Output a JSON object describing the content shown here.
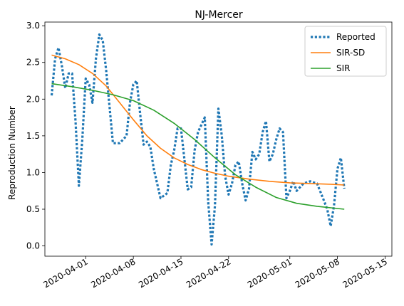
{
  "chart_data": {
    "type": "line",
    "title": "NJ-Mercer",
    "xlabel": "",
    "ylabel": "Reproduction Number",
    "xlim": [
      "2020-03-26",
      "2020-05-16"
    ],
    "ylim": [
      -0.14,
      3.05
    ],
    "x_ticks": [
      "2020-04-01",
      "2020-04-08",
      "2020-04-15",
      "2020-04-22",
      "2020-05-01",
      "2020-05-08",
      "2020-05-15"
    ],
    "y_ticks": [
      "0.0",
      "0.5",
      "1.0",
      "1.5",
      "2.0",
      "2.5",
      "3.0"
    ],
    "legend_position": "top-right",
    "series": [
      {
        "name": "Reported",
        "color": "#1f77b4",
        "style": "dotted",
        "points": [
          [
            "2020-03-27",
            2.05
          ],
          [
            "2020-03-27.5",
            2.55
          ],
          [
            "2020-03-28",
            2.7
          ],
          [
            "2020-03-28.5",
            2.45
          ],
          [
            "2020-03-29",
            2.15
          ],
          [
            "2020-03-29.5",
            2.35
          ],
          [
            "2020-03-30",
            2.35
          ],
          [
            "2020-03-30.5",
            1.7
          ],
          [
            "2020-03-31",
            0.82
          ],
          [
            "2020-03-31.5",
            1.45
          ],
          [
            "2020-04-01",
            2.28
          ],
          [
            "2020-04-01.5",
            2.2
          ],
          [
            "2020-04-02",
            1.95
          ],
          [
            "2020-04-02.5",
            2.55
          ],
          [
            "2020-04-03",
            2.88
          ],
          [
            "2020-04-03.5",
            2.8
          ],
          [
            "2020-04-04",
            2.4
          ],
          [
            "2020-04-04.5",
            1.9
          ],
          [
            "2020-04-05",
            1.4
          ],
          [
            "2020-04-06",
            1.4
          ],
          [
            "2020-04-07",
            1.5
          ],
          [
            "2020-04-07.5",
            1.95
          ],
          [
            "2020-04-08",
            2.2
          ],
          [
            "2020-04-08.5",
            2.25
          ],
          [
            "2020-04-09",
            1.8
          ],
          [
            "2020-04-09.5",
            1.38
          ],
          [
            "2020-04-10",
            1.42
          ],
          [
            "2020-04-10.5",
            1.35
          ],
          [
            "2020-04-11",
            1.05
          ],
          [
            "2020-04-12",
            0.65
          ],
          [
            "2020-04-13",
            0.72
          ],
          [
            "2020-04-13.5",
            1.1
          ],
          [
            "2020-04-14",
            1.3
          ],
          [
            "2020-04-14.5",
            1.6
          ],
          [
            "2020-04-15",
            1.6
          ],
          [
            "2020-04-16",
            0.77
          ],
          [
            "2020-04-16.5",
            0.8
          ],
          [
            "2020-04-17",
            1.3
          ],
          [
            "2020-04-17.5",
            1.55
          ],
          [
            "2020-04-18",
            1.65
          ],
          [
            "2020-04-18.5",
            1.75
          ],
          [
            "2020-04-19",
            0.6
          ],
          [
            "2020-04-19.5",
            0.02
          ],
          [
            "2020-04-20",
            0.55
          ],
          [
            "2020-04-20.5",
            1.87
          ],
          [
            "2020-04-21",
            1.5
          ],
          [
            "2020-04-21.5",
            0.95
          ],
          [
            "2020-04-22",
            0.7
          ],
          [
            "2020-04-22.5",
            0.85
          ],
          [
            "2020-04-23",
            1.1
          ],
          [
            "2020-04-23.5",
            1.15
          ],
          [
            "2020-04-24",
            0.85
          ],
          [
            "2020-04-24.5",
            0.62
          ],
          [
            "2020-04-25",
            0.78
          ],
          [
            "2020-04-25.5",
            1.28
          ],
          [
            "2020-04-26",
            1.18
          ],
          [
            "2020-04-26.5",
            1.25
          ],
          [
            "2020-04-27",
            1.55
          ],
          [
            "2020-04-27.5",
            1.7
          ],
          [
            "2020-04-28",
            1.15
          ],
          [
            "2020-04-28.5",
            1.25
          ],
          [
            "2020-04-29",
            1.45
          ],
          [
            "2020-04-29.5",
            1.6
          ],
          [
            "2020-04-30",
            1.55
          ],
          [
            "2020-04-30.5",
            0.65
          ],
          [
            "2020-05-01",
            0.75
          ],
          [
            "2020-05-01.5",
            0.88
          ],
          [
            "2020-05-02",
            0.75
          ],
          [
            "2020-05-03",
            0.85
          ],
          [
            "2020-05-04",
            0.88
          ],
          [
            "2020-05-05",
            0.85
          ],
          [
            "2020-05-06",
            0.62
          ],
          [
            "2020-05-06.5",
            0.5
          ],
          [
            "2020-05-07",
            0.27
          ],
          [
            "2020-05-07.5",
            0.55
          ],
          [
            "2020-05-08",
            1.05
          ],
          [
            "2020-05-08.5",
            1.2
          ],
          [
            "2020-05-09",
            0.78
          ]
        ]
      },
      {
        "name": "SIR-SD",
        "color": "#ff7f0e",
        "style": "solid",
        "points": [
          [
            "2020-03-27",
            2.6
          ],
          [
            "2020-03-29",
            2.55
          ],
          [
            "2020-03-31",
            2.47
          ],
          [
            "2020-04-02",
            2.35
          ],
          [
            "2020-04-04",
            2.18
          ],
          [
            "2020-04-06",
            1.95
          ],
          [
            "2020-04-08",
            1.72
          ],
          [
            "2020-04-10",
            1.5
          ],
          [
            "2020-04-12",
            1.33
          ],
          [
            "2020-04-14",
            1.2
          ],
          [
            "2020-04-16",
            1.11
          ],
          [
            "2020-04-18",
            1.04
          ],
          [
            "2020-04-20",
            0.99
          ],
          [
            "2020-04-22",
            0.95
          ],
          [
            "2020-04-25",
            0.91
          ],
          [
            "2020-04-28",
            0.88
          ],
          [
            "2020-05-01",
            0.86
          ],
          [
            "2020-05-04",
            0.85
          ],
          [
            "2020-05-07",
            0.84
          ],
          [
            "2020-05-09",
            0.83
          ]
        ]
      },
      {
        "name": "SIR",
        "color": "#2ca02c",
        "style": "solid",
        "points": [
          [
            "2020-03-27",
            2.21
          ],
          [
            "2020-03-30",
            2.17
          ],
          [
            "2020-04-02",
            2.12
          ],
          [
            "2020-04-05",
            2.06
          ],
          [
            "2020-04-08",
            1.98
          ],
          [
            "2020-04-11",
            1.85
          ],
          [
            "2020-04-14",
            1.67
          ],
          [
            "2020-04-17",
            1.45
          ],
          [
            "2020-04-20",
            1.2
          ],
          [
            "2020-04-23",
            0.97
          ],
          [
            "2020-04-26",
            0.8
          ],
          [
            "2020-04-29",
            0.66
          ],
          [
            "2020-05-02",
            0.58
          ],
          [
            "2020-05-05",
            0.54
          ],
          [
            "2020-05-09",
            0.5
          ]
        ]
      }
    ]
  }
}
